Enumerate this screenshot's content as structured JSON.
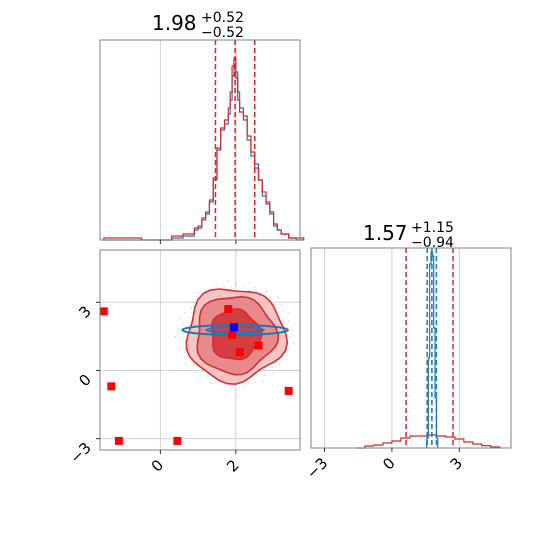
{
  "chart_data": [
    {
      "type": "histogram",
      "panel": "marginal-param-1",
      "title": {
        "value": "1.98",
        "plus": "+0.52",
        "minus": "−0.52"
      },
      "xlim": [
        -1.6,
        3.7
      ],
      "grid": true,
      "quantile_lines": [
        1.46,
        1.98,
        2.5
      ],
      "quantile_color": "#d62728",
      "series": [
        {
          "color": "#1f77b4",
          "x": [
            -1.5,
            -1.0,
            -0.5,
            0.3,
            0.6,
            0.9,
            1.0,
            1.1,
            1.2,
            1.3,
            1.4,
            1.5,
            1.6,
            1.7,
            1.8,
            1.85,
            1.9,
            1.95,
            2.0,
            2.05,
            2.1,
            2.2,
            2.3,
            2.4,
            2.5,
            2.6,
            2.7,
            2.8,
            2.9,
            3.0,
            3.1,
            3.2,
            3.4,
            3.6
          ],
          "y": [
            0.0,
            0.0,
            0.0,
            0.01,
            0.02,
            0.05,
            0.06,
            0.1,
            0.13,
            0.19,
            0.3,
            0.45,
            0.55,
            0.58,
            0.63,
            0.7,
            0.82,
            0.88,
            0.84,
            0.74,
            0.66,
            0.6,
            0.5,
            0.42,
            0.38,
            0.3,
            0.22,
            0.18,
            0.13,
            0.07,
            0.05,
            0.03,
            0.01,
            0.0
          ]
        },
        {
          "color": "#d62728",
          "x": [
            -1.5,
            -1.0,
            -0.5,
            0.3,
            0.6,
            0.9,
            1.0,
            1.1,
            1.2,
            1.3,
            1.4,
            1.5,
            1.6,
            1.7,
            1.8,
            1.85,
            1.9,
            1.95,
            2.0,
            2.05,
            2.1,
            2.2,
            2.3,
            2.4,
            2.5,
            2.6,
            2.7,
            2.8,
            2.9,
            3.0,
            3.1,
            3.2,
            3.4,
            3.6
          ],
          "y": [
            0.01,
            0.01,
            0.0,
            0.02,
            0.03,
            0.06,
            0.07,
            0.11,
            0.14,
            0.2,
            0.31,
            0.46,
            0.56,
            0.6,
            0.66,
            0.74,
            0.87,
            0.91,
            0.81,
            0.7,
            0.64,
            0.62,
            0.52,
            0.44,
            0.36,
            0.3,
            0.24,
            0.19,
            0.14,
            0.08,
            0.05,
            0.03,
            0.01,
            0.01
          ]
        }
      ]
    },
    {
      "type": "histogram",
      "panel": "marginal-param-2",
      "title": {
        "value": "1.57",
        "plus": "+1.15",
        "minus": "−0.94"
      },
      "xlim": [
        -3.6,
        5.3
      ],
      "grid": true,
      "xticks": [
        "−3",
        "0",
        "3"
      ],
      "quantile_lines": [
        {
          "x": 0.63,
          "color": "#d62728"
        },
        {
          "x": 1.57,
          "color": "#1f77b4"
        },
        {
          "x": 1.78,
          "color": "#1f77b4"
        },
        {
          "x": 1.98,
          "color": "#1f77b4"
        },
        {
          "x": 2.72,
          "color": "#d62728"
        }
      ],
      "series": [
        {
          "color": "#d62728",
          "x": [
            -1.6,
            -1.2,
            -0.8,
            -0.4,
            0.0,
            0.4,
            0.8,
            1.2,
            1.6,
            2.0,
            2.4,
            2.8,
            3.2,
            3.6,
            4.0,
            4.4
          ],
          "y": [
            0.0,
            0.01,
            0.015,
            0.025,
            0.035,
            0.05,
            0.06,
            0.06,
            0.065,
            0.06,
            0.055,
            0.045,
            0.03,
            0.02,
            0.012,
            0.005
          ]
        },
        {
          "color": "#1f77b4",
          "x": [
            1.55,
            1.62,
            1.68,
            1.74,
            1.8,
            1.86,
            1.92,
            1.98
          ],
          "y": [
            0.05,
            0.45,
            0.92,
            0.98,
            0.96,
            0.6,
            0.25,
            0.05
          ]
        }
      ]
    },
    {
      "type": "scatter",
      "panel": "joint-param-1-param-2",
      "xlim": [
        -1.6,
        3.7
      ],
      "ylim": [
        -3.5,
        5.3
      ],
      "grid": true,
      "xticks": [
        "0",
        "2"
      ],
      "yticks": [
        "−3",
        "0",
        "3"
      ],
      "red_contours": {
        "center": [
          1.98,
          1.57
        ],
        "levels": [
          [
            1.3,
            2.05
          ],
          [
            1.05,
            1.7
          ],
          [
            0.65,
            1.1
          ]
        ]
      },
      "blue_contour": {
        "center": [
          1.98,
          1.78
        ],
        "rx": 1.4,
        "ry": 0.22
      },
      "points_red": [
        [
          -1.5,
          2.6
        ],
        [
          -1.3,
          -0.7
        ],
        [
          -1.1,
          -3.1
        ],
        [
          0.45,
          -3.1
        ],
        [
          1.8,
          2.7
        ],
        [
          1.9,
          1.55
        ],
        [
          2.1,
          0.8
        ],
        [
          2.6,
          1.1
        ],
        [
          3.4,
          -0.9
        ]
      ],
      "points_blue": [
        [
          1.95,
          1.9
        ]
      ]
    }
  ]
}
